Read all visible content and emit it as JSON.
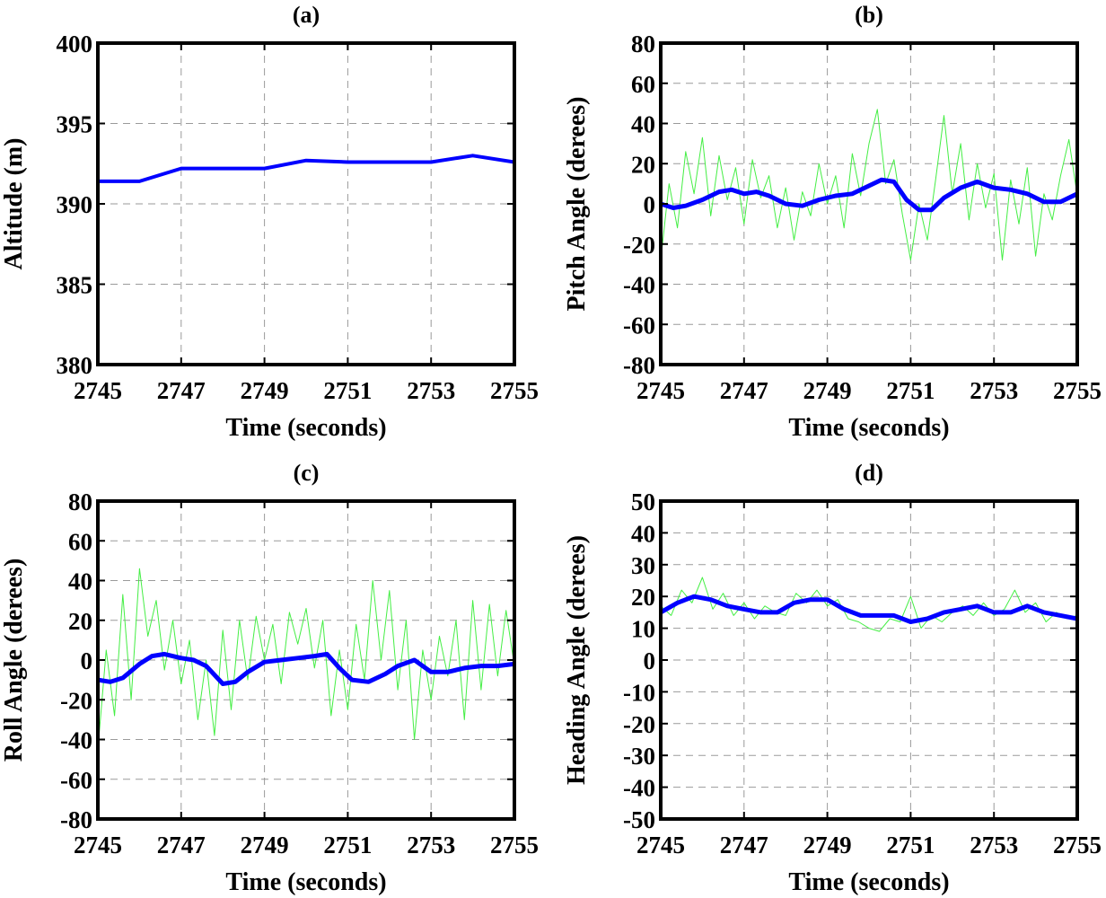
{
  "figure": {
    "colors": {
      "smoothed": "#0000ff",
      "raw": "#44ee44",
      "axes": "#000000",
      "grid": "#9a9a9a"
    }
  },
  "chart_data": [
    {
      "id": "a",
      "type": "line",
      "title": "(a)",
      "xlabel": "Time (seconds)",
      "ylabel": "Altitude (m)",
      "xlim": [
        2745,
        2755
      ],
      "ylim": [
        380,
        400
      ],
      "xticks": [
        2745,
        2747,
        2749,
        2751,
        2753,
        2755
      ],
      "yticks": [
        380,
        385,
        390,
        395,
        400
      ],
      "xgrid": [
        2747,
        2749,
        2751,
        2753
      ],
      "ygrid": [
        385,
        390,
        395
      ],
      "series": [
        {
          "name": "altitude",
          "style": "smoothed",
          "x": [
            2745,
            2746,
            2747,
            2748,
            2749,
            2750,
            2751,
            2752,
            2753,
            2754,
            2755
          ],
          "y": [
            391.4,
            391.4,
            392.2,
            392.2,
            392.2,
            392.7,
            392.6,
            392.6,
            392.6,
            393.0,
            392.6
          ]
        }
      ]
    },
    {
      "id": "b",
      "type": "line",
      "title": "(b)",
      "xlabel": "Time (seconds)",
      "ylabel": "Pitch Angle (derees)",
      "xlim": [
        2745,
        2755
      ],
      "ylim": [
        -80,
        80
      ],
      "xticks": [
        2745,
        2747,
        2749,
        2751,
        2753,
        2755
      ],
      "yticks": [
        -80,
        -60,
        -40,
        -20,
        0,
        20,
        40,
        60,
        80
      ],
      "xgrid": [
        2747,
        2749,
        2751,
        2753
      ],
      "ygrid": [
        -60,
        -40,
        -20,
        0,
        20,
        40,
        60
      ],
      "series": [
        {
          "name": "raw",
          "style": "raw",
          "x": [
            2745,
            2745.2,
            2745.4,
            2745.6,
            2745.8,
            2746,
            2746.2,
            2746.4,
            2746.6,
            2746.8,
            2747,
            2747.2,
            2747.4,
            2747.6,
            2747.8,
            2748,
            2748.2,
            2748.4,
            2748.6,
            2748.8,
            2749,
            2749.2,
            2749.4,
            2749.6,
            2749.8,
            2750,
            2750.2,
            2750.4,
            2750.6,
            2750.8,
            2751,
            2751.2,
            2751.4,
            2751.6,
            2751.8,
            2752,
            2752.2,
            2752.4,
            2752.6,
            2752.8,
            2753,
            2753.2,
            2753.4,
            2753.6,
            2753.8,
            2754,
            2754.2,
            2754.4,
            2754.6,
            2754.8,
            2755
          ],
          "y": [
            -28,
            10,
            -12,
            26,
            5,
            33,
            -6,
            24,
            2,
            18,
            -10,
            22,
            3,
            14,
            -12,
            8,
            -18,
            6,
            -6,
            20,
            0,
            14,
            -12,
            25,
            4,
            30,
            47,
            10,
            22,
            -5,
            -28,
            0,
            -18,
            12,
            44,
            5,
            30,
            -8,
            20,
            -2,
            15,
            -28,
            12,
            -10,
            18,
            -26,
            5,
            -8,
            14,
            32,
            4
          ]
        },
        {
          "name": "smoothed",
          "style": "smoothed",
          "x": [
            2745,
            2745.3,
            2745.6,
            2746,
            2746.4,
            2746.7,
            2747,
            2747.3,
            2747.6,
            2748,
            2748.4,
            2748.8,
            2749.2,
            2749.6,
            2750,
            2750.3,
            2750.6,
            2750.9,
            2751.2,
            2751.5,
            2751.8,
            2752.2,
            2752.6,
            2753,
            2753.4,
            2753.8,
            2754.2,
            2754.6,
            2755
          ],
          "y": [
            0,
            -2,
            -1,
            2,
            6,
            7,
            5,
            6,
            4,
            0,
            -1,
            2,
            4,
            5,
            9,
            12,
            11,
            2,
            -3,
            -3,
            3,
            8,
            11,
            8,
            7,
            5,
            1,
            1,
            5
          ]
        }
      ]
    },
    {
      "id": "c",
      "type": "line",
      "title": "(c)",
      "xlabel": "Time (seconds)",
      "ylabel": "Roll Angle (derees)",
      "xlim": [
        2745,
        2755
      ],
      "ylim": [
        -80,
        80
      ],
      "xticks": [
        2745,
        2747,
        2749,
        2751,
        2753,
        2755
      ],
      "yticks": [
        -80,
        -60,
        -40,
        -20,
        0,
        20,
        40,
        60,
        80
      ],
      "xgrid": [
        2747,
        2749,
        2751,
        2753
      ],
      "ygrid": [
        -60,
        -40,
        -20,
        0,
        20,
        40,
        60
      ],
      "series": [
        {
          "name": "raw",
          "style": "raw",
          "x": [
            2745,
            2745.2,
            2745.4,
            2745.6,
            2745.8,
            2746,
            2746.2,
            2746.4,
            2746.6,
            2746.8,
            2747,
            2747.2,
            2747.4,
            2747.6,
            2747.8,
            2748,
            2748.2,
            2748.4,
            2748.6,
            2748.8,
            2749,
            2749.2,
            2749.4,
            2749.6,
            2749.8,
            2750,
            2750.2,
            2750.4,
            2750.6,
            2750.8,
            2751,
            2751.2,
            2751.4,
            2751.6,
            2751.8,
            2752,
            2752.2,
            2752.4,
            2752.6,
            2752.8,
            2753,
            2753.2,
            2753.4,
            2753.6,
            2753.8,
            2754,
            2754.2,
            2754.4,
            2754.6,
            2754.8,
            2755
          ],
          "y": [
            -45,
            5,
            -28,
            33,
            -20,
            46,
            12,
            30,
            -5,
            20,
            -12,
            10,
            -30,
            0,
            -38,
            15,
            -25,
            20,
            -10,
            22,
            0,
            18,
            -12,
            24,
            8,
            26,
            -4,
            20,
            -28,
            5,
            -25,
            18,
            -10,
            40,
            0,
            35,
            -15,
            20,
            -40,
            5,
            -20,
            12,
            -8,
            20,
            -30,
            30,
            -15,
            28,
            -8,
            25,
            -3
          ]
        },
        {
          "name": "smoothed",
          "style": "smoothed",
          "x": [
            2745,
            2745.3,
            2745.6,
            2746,
            2746.3,
            2746.6,
            2747,
            2747.3,
            2747.6,
            2748,
            2748.3,
            2748.6,
            2749,
            2749.4,
            2749.8,
            2750.2,
            2750.5,
            2750.8,
            2751.1,
            2751.5,
            2751.9,
            2752.2,
            2752.6,
            2753,
            2753.4,
            2753.8,
            2754.2,
            2754.6,
            2755
          ],
          "y": [
            -10,
            -11,
            -9,
            -2,
            2,
            3,
            1,
            0,
            -3,
            -12,
            -11,
            -6,
            -1,
            0,
            1,
            2,
            3,
            -4,
            -10,
            -11,
            -7,
            -3,
            0,
            -6,
            -6,
            -4,
            -3,
            -3,
            -2
          ]
        }
      ]
    },
    {
      "id": "d",
      "type": "line",
      "title": "(d)",
      "xlabel": "Time (seconds)",
      "ylabel": "Heading Angle (derees)",
      "xlim": [
        2745,
        2755
      ],
      "ylim": [
        -50,
        50
      ],
      "xticks": [
        2745,
        2747,
        2749,
        2751,
        2753,
        2755
      ],
      "yticks": [
        -50,
        -40,
        -30,
        -20,
        -10,
        0,
        10,
        20,
        30,
        40,
        50
      ],
      "xgrid": [
        2747,
        2749,
        2751,
        2753
      ],
      "ygrid": [
        -40,
        -30,
        -20,
        -10,
        0,
        10,
        20,
        30,
        40
      ],
      "series": [
        {
          "name": "raw",
          "style": "raw",
          "x": [
            2745,
            2745.25,
            2745.5,
            2745.75,
            2746,
            2746.25,
            2746.5,
            2746.75,
            2747,
            2747.25,
            2747.5,
            2747.75,
            2748,
            2748.25,
            2748.5,
            2748.75,
            2749,
            2749.25,
            2749.5,
            2749.75,
            2750,
            2750.25,
            2750.5,
            2750.75,
            2751,
            2751.25,
            2751.5,
            2751.75,
            2752,
            2752.25,
            2752.5,
            2752.75,
            2753,
            2753.25,
            2753.5,
            2753.75,
            2754,
            2754.25,
            2754.5,
            2754.75,
            2755
          ],
          "y": [
            17,
            14,
            22,
            18,
            26,
            16,
            21,
            14,
            18,
            13,
            17,
            15,
            14,
            21,
            18,
            22,
            17,
            19,
            13,
            12,
            10,
            9,
            13,
            12,
            20,
            10,
            14,
            12,
            15,
            17,
            14,
            18,
            14,
            16,
            22,
            15,
            18,
            12,
            15,
            13,
            14
          ]
        },
        {
          "name": "smoothed",
          "style": "smoothed",
          "x": [
            2745,
            2745.4,
            2745.8,
            2746.2,
            2746.6,
            2747,
            2747.4,
            2747.8,
            2748.2,
            2748.6,
            2749,
            2749.4,
            2749.8,
            2750.2,
            2750.6,
            2751,
            2751.4,
            2751.8,
            2752.2,
            2752.6,
            2753,
            2753.4,
            2753.8,
            2754.2,
            2754.6,
            2755
          ],
          "y": [
            15,
            18,
            20,
            19,
            17,
            16,
            15,
            15,
            18,
            19,
            19,
            16,
            14,
            14,
            14,
            12,
            13,
            15,
            16,
            17,
            15,
            15,
            17,
            15,
            14,
            13
          ]
        }
      ]
    }
  ]
}
